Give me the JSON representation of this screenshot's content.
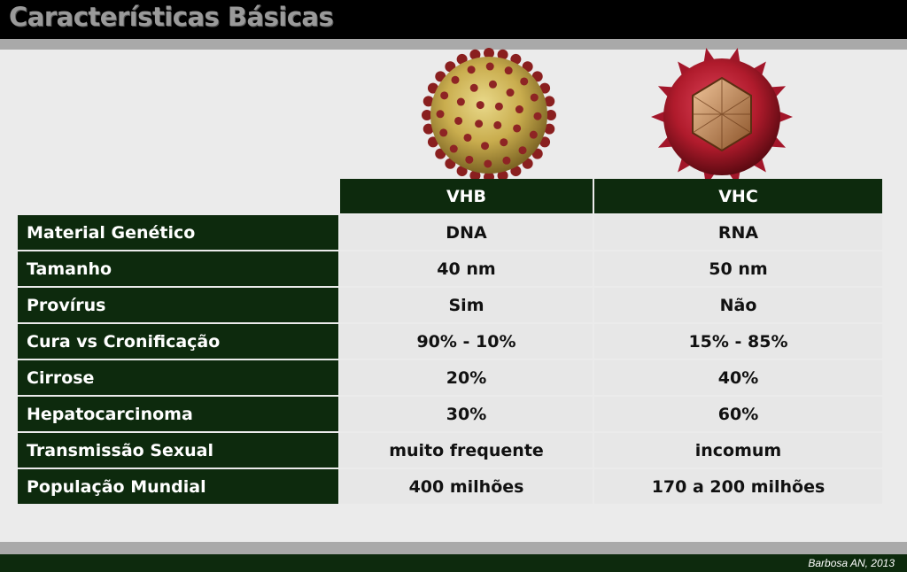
{
  "slide": {
    "title": "Características Básicas",
    "credit": "Barbosa AN, 2013"
  },
  "table": {
    "columns": [
      "VHB",
      "VHC"
    ],
    "rows": [
      {
        "label": "Material Genético",
        "vhb": "DNA",
        "vhc": "RNA"
      },
      {
        "label": "Tamanho",
        "vhb": "40 nm",
        "vhc": "50 nm"
      },
      {
        "label": "Provírus",
        "vhb": "Sim",
        "vhc": "Não"
      },
      {
        "label": "Cura vs Cronificação",
        "vhb": "90% - 10%",
        "vhc": "15% - 85%"
      },
      {
        "label": "Cirrose",
        "vhb": "20%",
        "vhc": "40%"
      },
      {
        "label": "Hepatocarcinoma",
        "vhb": "30%",
        "vhc": "60%"
      },
      {
        "label": "Transmissão Sexual",
        "vhb": "muito frequente",
        "vhc": "incomum"
      },
      {
        "label": "População Mundial",
        "vhb": "400 milhões",
        "vhc": "170 a 200 milhões"
      }
    ]
  },
  "images": {
    "vhb_icon": "hbv-virus-illustration",
    "vhc_icon": "hcv-virus-illustration"
  },
  "colors": {
    "header_green": "#0d2a0d",
    "cell_gray": "#e7e7e7",
    "title_gray": "#9a9a9a"
  }
}
